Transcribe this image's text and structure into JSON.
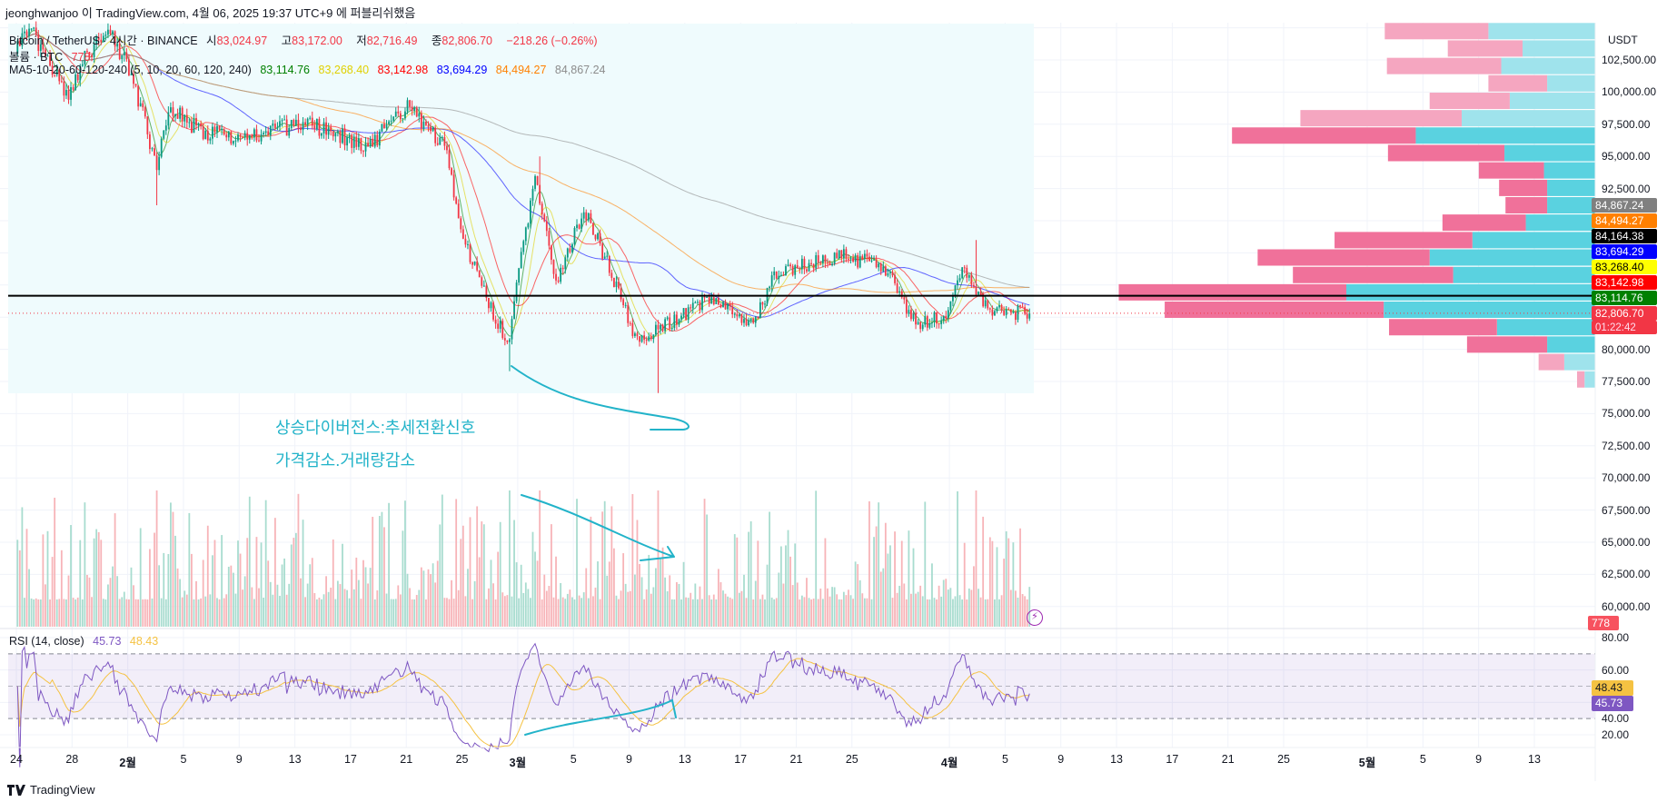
{
  "header": {
    "published": "jeonghwanjoo 이 TradingView.com, 4월 06, 2025 19:37 UTC+9 에 퍼블리쉬했음"
  },
  "legend": {
    "symbol": "Bitcoin / TetherUS · 4시간 · BINANCE",
    "open_label": "시",
    "open": "83,024.97",
    "high_label": "고",
    "high": "83,172.00",
    "low_label": "저",
    "low": "82,716.49",
    "close_label": "종",
    "close": "82,806.70",
    "change": "−218.26 (−0.26%)",
    "volume_title": "볼륨 · BTC",
    "volume": "778",
    "ma_title": "MA5-10-20-60-120-240 (5, 10, 20, 60, 120, 240)",
    "ma_values": [
      "83,114.76",
      "83,268.40",
      "83,142.98",
      "83,694.29",
      "84,494.27",
      "84,867.24"
    ],
    "rsi_title": "RSI (14, close)",
    "rsi": "45.73",
    "rsi_ma": "48.43"
  },
  "colors": {
    "up": "#089981",
    "down": "#f23645",
    "ma": [
      "#008000",
      "#e0d000",
      "#ff0000",
      "#0000ff",
      "#ff8000",
      "#8c8c8c"
    ],
    "rsi": "#7e57c2",
    "rsi_ma": "#f5c242",
    "vp_up": "#5ad2e0",
    "vp_down": "#f0719a",
    "vp_up_light": "#9fe3ec",
    "vp_down_light": "#f5a6c0",
    "annotation": "#22b3c9",
    "highlight_box": "#effbfd"
  },
  "price_axis": {
    "currency": "USDT",
    "labels": [
      "102,500.00",
      "100,000.00",
      "97,500.00",
      "95,000.00",
      "92,500.00",
      "80,000.00",
      "77,500.00",
      "75,000.00",
      "72,500.00",
      "70,000.00",
      "67,500.00",
      "65,000.00",
      "62,500.00",
      "60,000.00"
    ],
    "badges": [
      {
        "text": "84,867.24",
        "bg": "#808080",
        "fg": "#ffffff"
      },
      {
        "text": "84,494.27",
        "bg": "#ff8000",
        "fg": "#ffffff"
      },
      {
        "text": "84,164.38",
        "bg": "#000000",
        "fg": "#ffffff"
      },
      {
        "text": "83,694.29",
        "bg": "#0000ff",
        "fg": "#ffffff"
      },
      {
        "text": "83,268.40",
        "bg": "#ffff00",
        "fg": "#000000"
      },
      {
        "text": "83,142.98",
        "bg": "#ff0000",
        "fg": "#ffffff"
      },
      {
        "text": "83,114.76",
        "bg": "#008000",
        "fg": "#ffffff"
      }
    ],
    "last_price": "82,806.70",
    "countdown": "01:22:42",
    "volume_badge": "778"
  },
  "rsi_axis": {
    "labels": [
      "80.00",
      "60.00",
      "40.00",
      "20.00"
    ],
    "rsi_ma_badge": "48.43",
    "rsi_badge": "45.73"
  },
  "date_axis": [
    {
      "t": "24",
      "d": "2025-01-24"
    },
    {
      "t": "28",
      "d": "2025-01-28"
    },
    {
      "t": "2월",
      "d": "2025-02-01",
      "bold": true
    },
    {
      "t": "5",
      "d": "2025-02-05"
    },
    {
      "t": "9",
      "d": "2025-02-09"
    },
    {
      "t": "13",
      "d": "2025-02-13"
    },
    {
      "t": "17",
      "d": "2025-02-17"
    },
    {
      "t": "21",
      "d": "2025-02-21"
    },
    {
      "t": "25",
      "d": "2025-02-25"
    },
    {
      "t": "3월",
      "d": "2025-03-01",
      "bold": true
    },
    {
      "t": "5",
      "d": "2025-03-05"
    },
    {
      "t": "9",
      "d": "2025-03-09"
    },
    {
      "t": "13",
      "d": "2025-03-13"
    },
    {
      "t": "17",
      "d": "2025-03-17"
    },
    {
      "t": "21",
      "d": "2025-03-21"
    },
    {
      "t": "25",
      "d": "2025-03-25"
    },
    {
      "t": "4월",
      "d": "2025-04-01",
      "bold": true
    },
    {
      "t": "5",
      "d": "2025-04-05"
    },
    {
      "t": "9",
      "d": "2025-04-09"
    },
    {
      "t": "13",
      "d": "2025-04-13"
    },
    {
      "t": "17",
      "d": "2025-04-17"
    },
    {
      "t": "21",
      "d": "2025-04-21"
    },
    {
      "t": "25",
      "d": "2025-04-25"
    },
    {
      "t": "5월",
      "d": "2025-05-01",
      "bold": true
    },
    {
      "t": "5",
      "d": "2025-05-05"
    },
    {
      "t": "9",
      "d": "2025-05-09"
    },
    {
      "t": "13",
      "d": "2025-05-13"
    }
  ],
  "annotations": {
    "line1": "상승다이버전스:추세전환신호",
    "line2": "가격감소.거래량감소"
  },
  "footer": {
    "brand": "TradingView"
  },
  "chart_data": {
    "type": "candlestick",
    "timeframe": "4h",
    "ylim": [
      57500,
      105000
    ],
    "horizontal_line": 84164.38,
    "last_close": 82806.7,
    "price_path": [
      [
        "2025-01-24 00:00",
        103000
      ],
      [
        "2025-01-25 04:00",
        105000
      ],
      [
        "2025-01-27 20:00",
        99300
      ],
      [
        "2025-01-29 00:00",
        102500
      ],
      [
        "2025-01-30 12:00",
        105000
      ],
      [
        "2025-02-01 08:00",
        101500
      ],
      [
        "2025-02-02 08:00",
        97500
      ],
      [
        "2025-02-03 04:00",
        94000
      ],
      [
        "2025-02-04 00:00",
        99000
      ],
      [
        "2025-02-06 04:00",
        97000
      ],
      [
        "2025-02-09 00:00",
        96500
      ],
      [
        "2025-02-14 00:00",
        97600
      ],
      [
        "2025-02-18 08:00",
        95800
      ],
      [
        "2025-02-21 04:00",
        98800
      ],
      [
        "2025-02-23 20:00",
        96000
      ],
      [
        "2025-02-25 00:00",
        89000
      ],
      [
        "2025-02-27 16:00",
        82000
      ],
      [
        "2025-02-28 12:00",
        80500
      ],
      [
        "2025-03-01 04:00",
        86000
      ],
      [
        "2025-03-02 08:00",
        93500
      ],
      [
        "2025-03-03 20:00",
        85000
      ],
      [
        "2025-03-05 20:00",
        91000
      ],
      [
        "2025-03-07 08:00",
        87200
      ],
      [
        "2025-03-09 16:00",
        80500
      ],
      [
        "2025-03-11 20:00",
        82000
      ],
      [
        "2025-03-15 00:00",
        84000
      ],
      [
        "2025-03-18 00:00",
        82000
      ],
      [
        "2025-03-19 16:00",
        86000
      ],
      [
        "2025-03-24 04:00",
        87300
      ],
      [
        "2025-03-27 08:00",
        86500
      ],
      [
        "2025-03-29 16:00",
        82000
      ],
      [
        "2025-03-31 20:00",
        82600
      ],
      [
        "2025-04-02 00:00",
        86400
      ],
      [
        "2025-04-03 20:00",
        83000
      ],
      [
        "2025-04-06 16:00",
        82806.7
      ]
    ],
    "wick_extremes": [
      [
        "2025-02-03 00:00",
        "low",
        91200
      ],
      [
        "2025-02-28 08:00",
        "low",
        78300
      ],
      [
        "2025-03-02 12:00",
        "high",
        95000
      ],
      [
        "2025-03-11 00:00",
        "low",
        76600
      ],
      [
        "2025-04-02 20:00",
        "high",
        88500
      ]
    ],
    "rsi": {
      "period": 14,
      "ma_period": 14,
      "ylim": [
        10,
        90
      ],
      "bands": [
        70,
        50,
        30
      ]
    },
    "volume_profile": [
      {
        "price": 104740,
        "up": 100,
        "down": 97,
        "value_area": false
      },
      {
        "price": 103390,
        "up": 68,
        "down": 70,
        "value_area": false
      },
      {
        "price": 102030,
        "up": 88,
        "down": 107,
        "value_area": false
      },
      {
        "price": 100680,
        "up": 45,
        "down": 55,
        "value_area": false
      },
      {
        "price": 99320,
        "up": 80,
        "down": 75,
        "value_area": false
      },
      {
        "price": 97970,
        "up": 125,
        "down": 151,
        "value_area": false
      },
      {
        "price": 96620,
        "up": 168,
        "down": 172,
        "value_area": true
      },
      {
        "price": 95260,
        "up": 85,
        "down": 109,
        "value_area": true
      },
      {
        "price": 93910,
        "up": 48,
        "down": 61,
        "value_area": true
      },
      {
        "price": 92550,
        "up": 45,
        "down": 45,
        "value_area": true
      },
      {
        "price": 91200,
        "up": 45,
        "down": 39,
        "value_area": true
      },
      {
        "price": 89850,
        "up": 65,
        "down": 78,
        "value_area": true
      },
      {
        "price": 88490,
        "up": 115,
        "down": 129,
        "value_area": true
      },
      {
        "price": 87140,
        "up": 155,
        "down": 161,
        "value_area": true
      },
      {
        "price": 85780,
        "up": 133,
        "down": 150,
        "value_area": true
      },
      {
        "price": 84430,
        "up": 233,
        "down": 213,
        "value_area": true
      },
      {
        "price": 83080,
        "up": 198,
        "down": 205,
        "value_area": true
      },
      {
        "price": 81720,
        "up": 92,
        "down": 101,
        "value_area": true
      },
      {
        "price": 80370,
        "up": 45,
        "down": 75,
        "value_area": true
      },
      {
        "price": 79010,
        "up": 29,
        "down": 24,
        "value_area": false
      },
      {
        "price": 77660,
        "up": 10,
        "down": 7,
        "value_area": false
      }
    ]
  }
}
